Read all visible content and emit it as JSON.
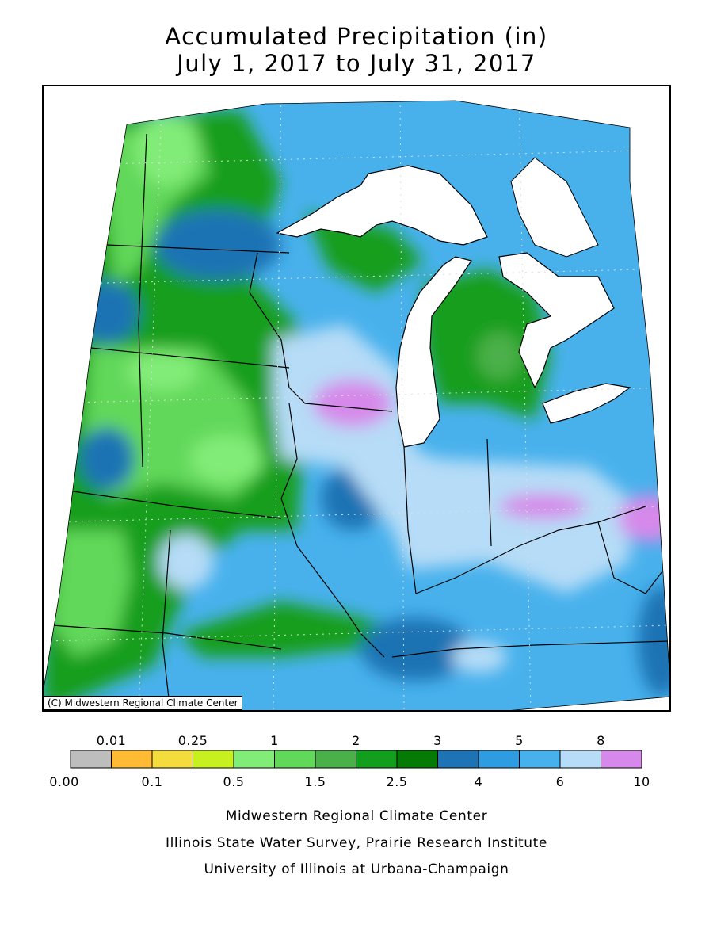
{
  "title": {
    "line1": "Accumulated Precipitation (in)",
    "line2": "July 1, 2017 to July 31, 2017"
  },
  "map": {
    "credit": "(C) Midwestern Regional Climate Center",
    "water_color": "#ffffff",
    "border_color": "#000000"
  },
  "legend": {
    "colors": [
      "#bdbdbd",
      "#ffbb33",
      "#f4dc3c",
      "#c8f01e",
      "#82ec78",
      "#62d85a",
      "#4cb04a",
      "#149e1e",
      "#057a05",
      "#1e73b4",
      "#2f9be0",
      "#48b1ec",
      "#b6dcf7",
      "#d689ea"
    ],
    "top_labels": [
      "0.01",
      "0.25",
      "1",
      "2",
      "3",
      "5",
      "8"
    ],
    "bottom_labels": [
      "0.00",
      "0.1",
      "0.5",
      "1.5",
      "2.5",
      "4",
      "6",
      "10"
    ]
  },
  "footer": {
    "line1": "Midwestern Regional Climate Center",
    "line2": "Illinois State Water Survey, Prairie Research Institute",
    "line3": "University of Illinois at Urbana-Champaign"
  }
}
